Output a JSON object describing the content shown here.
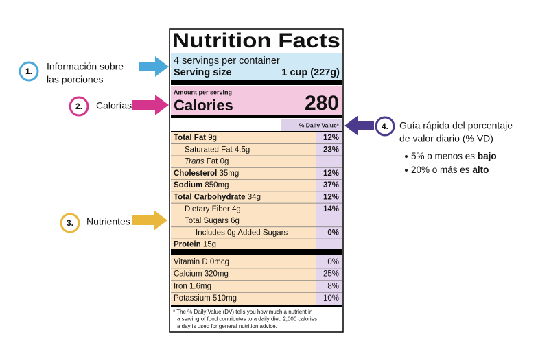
{
  "label": {
    "title": "Nutrition Facts",
    "servings": "4 servings per container",
    "serving_size_label": "Serving size",
    "serving_size_value": "1 cup (227g)",
    "amount_per_serving": "Amount per serving",
    "calories_label": "Calories",
    "calories_value": "280",
    "daily_value_header": "% Daily Value*",
    "nutrients": [
      {
        "level": 0,
        "name": "Total Fat",
        "amount": "9g",
        "dv": "12%"
      },
      {
        "level": 1,
        "name": "Saturated Fat",
        "amount": "4.5g",
        "dv": "23%"
      },
      {
        "level": 1,
        "italic": "Trans",
        "name": "Fat",
        "amount": "0g"
      },
      {
        "level": 0,
        "name": "Cholesterol",
        "amount": "35mg",
        "dv": "12%"
      },
      {
        "level": 0,
        "name": "Sodium",
        "amount": "850mg",
        "dv": "37%"
      },
      {
        "level": 0,
        "name": "Total Carbohydrate",
        "amount": "34g",
        "dv": "12%"
      },
      {
        "level": 1,
        "name": "Dietary Fiber",
        "amount": "4g",
        "dv": "14%"
      },
      {
        "level": 1,
        "name": "Total Sugars",
        "amount": "6g"
      },
      {
        "level": 2,
        "name": "Includes 0g Added Sugars",
        "dv": "0%"
      },
      {
        "level": 0,
        "name": "Protein",
        "amount": "15g"
      }
    ],
    "vitamins_minerals": [
      {
        "name": "Vitamin D",
        "amount": "0mcg",
        "dv": "0%"
      },
      {
        "name": "Calcium",
        "amount": "320mg",
        "dv": "25%"
      },
      {
        "name": "Iron",
        "amount": "1.6mg",
        "dv": "8%"
      },
      {
        "name": "Potassium",
        "amount": "510mg",
        "dv": "10%"
      }
    ],
    "footnote": [
      "* The % Daily Value (DV) tells you how much a nutrient in",
      "a serving of food contributes to a daily diet. 2,000 calories",
      "a day is used for general nutrition advice."
    ]
  },
  "annotations": [
    {
      "number": "1.",
      "lines": [
        "Información sobre",
        "las porciones"
      ],
      "color": "#4aa9da"
    },
    {
      "number": "2.",
      "lines": [
        "Calorías"
      ],
      "color": "#d5358c"
    },
    {
      "number": "3.",
      "lines": [
        "Nutrientes"
      ],
      "color": "#e9b73c"
    },
    {
      "number": "4.",
      "lines": [
        "Guía rápida del porcentaje",
        "de valor diario (% VD)"
      ],
      "color": "#4c3b8d",
      "bullets": [
        {
          "text": "5% o menos es",
          "bold": "bajo"
        },
        {
          "text": "20% o más es",
          "bold": "alto"
        }
      ]
    }
  ]
}
